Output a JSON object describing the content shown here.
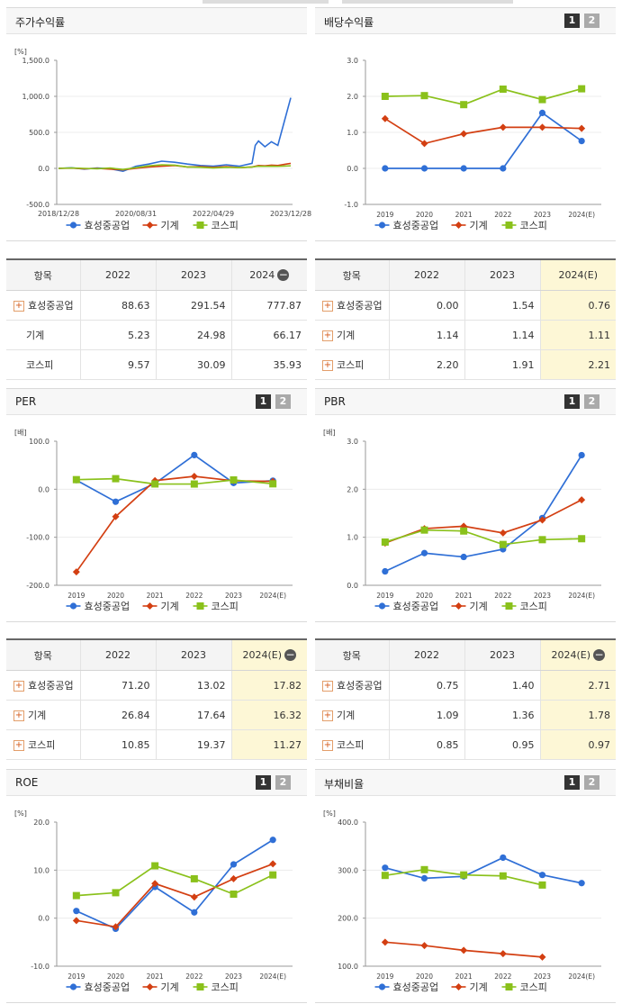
{
  "pager": {
    "p1": "1",
    "p2": "2"
  },
  "colors": {
    "blue": "#2f6fd6",
    "red": "#d33f12",
    "green": "#8ac11b"
  },
  "chart_data": [
    {
      "type": "line",
      "title": "주가수익률",
      "unit": "[%]",
      "ylim": [
        -500,
        1500
      ],
      "yticks": [
        "1,500.0",
        "1,000.0",
        "500.0",
        "0.0",
        "-500.0"
      ],
      "xticks": [
        "2018/12/28",
        "2020/08/31",
        "2022/04/29",
        "2023/12/28"
      ],
      "x": [
        0,
        4,
        8,
        12,
        16,
        20,
        24,
        28,
        32,
        36,
        40,
        44,
        48,
        52,
        56,
        60,
        61,
        62,
        64,
        66,
        68,
        70,
        72
      ],
      "series": [
        {
          "name": "효성중공업",
          "color": "blue",
          "values": [
            0,
            8,
            -10,
            5,
            -5,
            -40,
            30,
            60,
            100,
            85,
            60,
            40,
            30,
            50,
            30,
            70,
            320,
            380,
            300,
            370,
            320,
            650,
            980
          ]
        },
        {
          "name": "기계",
          "color": "red",
          "values": [
            0,
            3,
            -5,
            0,
            -10,
            -20,
            0,
            20,
            30,
            40,
            20,
            25,
            15,
            25,
            10,
            20,
            30,
            40,
            35,
            45,
            40,
            55,
            70
          ]
        },
        {
          "name": "코스피",
          "color": "green",
          "values": [
            0,
            5,
            0,
            -5,
            5,
            -15,
            10,
            35,
            50,
            45,
            20,
            15,
            5,
            15,
            10,
            20,
            25,
            30,
            28,
            30,
            28,
            32,
            36
          ]
        }
      ]
    },
    {
      "type": "line",
      "title": "배당수익률",
      "unit": "",
      "ylim": [
        -1,
        3
      ],
      "yticks": [
        "3.0",
        "2.0",
        "1.0",
        "0.0",
        "-1.0"
      ],
      "categories": [
        "2019",
        "2020",
        "2021",
        "2022",
        "2023",
        "2024(E)"
      ],
      "series": [
        {
          "name": "효성중공업",
          "color": "blue",
          "values": [
            0.0,
            0.0,
            0.0,
            0.0,
            1.54,
            0.76
          ]
        },
        {
          "name": "기계",
          "color": "red",
          "values": [
            1.38,
            0.69,
            0.96,
            1.14,
            1.14,
            1.11
          ]
        },
        {
          "name": "코스피",
          "color": "green",
          "values": [
            2.0,
            2.02,
            1.77,
            2.2,
            1.91,
            2.21
          ]
        }
      ]
    },
    {
      "type": "line",
      "title": "PER",
      "unit": "[배]",
      "ylim": [
        -200,
        100
      ],
      "yticks": [
        "100.0",
        "0.0",
        "-100.0",
        "-200.0"
      ],
      "categories": [
        "2019",
        "2020",
        "2021",
        "2022",
        "2023",
        "2024(E)"
      ],
      "series": [
        {
          "name": "효성중공업",
          "color": "blue",
          "values": [
            19,
            -26,
            12,
            71.2,
            13.02,
            17.82
          ]
        },
        {
          "name": "기계",
          "color": "red",
          "values": [
            -172,
            -57,
            18,
            26.84,
            17.64,
            16.32
          ]
        },
        {
          "name": "코스피",
          "color": "green",
          "values": [
            20,
            22,
            11,
            10.85,
            19.37,
            11.27
          ]
        }
      ]
    },
    {
      "type": "line",
      "title": "PBR",
      "unit": "[배]",
      "ylim": [
        0,
        3
      ],
      "yticks": [
        "3.0",
        "2.0",
        "1.0",
        "0.0"
      ],
      "categories": [
        "2019",
        "2020",
        "2021",
        "2022",
        "2023",
        "2024(E)"
      ],
      "series": [
        {
          "name": "효성중공업",
          "color": "blue",
          "values": [
            0.29,
            0.67,
            0.59,
            0.75,
            1.4,
            2.71
          ]
        },
        {
          "name": "기계",
          "color": "red",
          "values": [
            0.88,
            1.18,
            1.23,
            1.09,
            1.36,
            1.78
          ]
        },
        {
          "name": "코스피",
          "color": "green",
          "values": [
            0.9,
            1.15,
            1.13,
            0.85,
            0.95,
            0.97
          ]
        }
      ]
    },
    {
      "type": "line",
      "title": "ROE",
      "unit": "[%]",
      "ylim": [
        -10,
        20
      ],
      "yticks": [
        "20.0",
        "10.0",
        "0.0",
        "-10.0"
      ],
      "categories": [
        "2019",
        "2020",
        "2021",
        "2022",
        "2023",
        "2024(E)"
      ],
      "series": [
        {
          "name": "효성중공업",
          "color": "blue",
          "values": [
            1.5,
            -2.2,
            6.5,
            1.2,
            11.2,
            16.3
          ]
        },
        {
          "name": "기계",
          "color": "red",
          "values": [
            -0.5,
            -1.8,
            7.2,
            4.4,
            8.2,
            11.3
          ]
        },
        {
          "name": "코스피",
          "color": "green",
          "values": [
            4.7,
            5.3,
            10.9,
            8.2,
            5.0,
            9.0
          ]
        }
      ]
    },
    {
      "type": "line",
      "title": "부채비율",
      "unit": "[%]",
      "ylim": [
        100,
        400
      ],
      "yticks": [
        "400.0",
        "300.0",
        "200.0",
        "100.0"
      ],
      "categories": [
        "2019",
        "2020",
        "2021",
        "2022",
        "2023",
        "2024(E)"
      ],
      "series": [
        {
          "name": "효성중공업",
          "color": "blue",
          "values": [
            305,
            283,
            287,
            326,
            290,
            273
          ]
        },
        {
          "name": "기계",
          "color": "red",
          "values": [
            150,
            143,
            133,
            126,
            119,
            null
          ]
        },
        {
          "name": "코스피",
          "color": "green",
          "values": [
            289,
            301,
            290,
            288,
            269,
            null
          ]
        }
      ]
    }
  ],
  "tables": [
    {
      "head": [
        "항목",
        "2022",
        "2023",
        "2024"
      ],
      "collapse": true,
      "highlight_last": false,
      "rows": [
        {
          "plus": true,
          "label": "효성중공업",
          "values": [
            "88.63",
            "291.54",
            "777.87"
          ]
        },
        {
          "plus": false,
          "label": "기계",
          "values": [
            "5.23",
            "24.98",
            "66.17"
          ]
        },
        {
          "plus": false,
          "label": "코스피",
          "values": [
            "9.57",
            "30.09",
            "35.93"
          ]
        }
      ]
    },
    {
      "head": [
        "항목",
        "2022",
        "2023",
        "2024(E)"
      ],
      "collapse": false,
      "highlight_last": true,
      "rows": [
        {
          "plus": true,
          "label": "효성중공업",
          "values": [
            "0.00",
            "1.54",
            "0.76"
          ]
        },
        {
          "plus": true,
          "label": "기계",
          "values": [
            "1.14",
            "1.14",
            "1.11"
          ]
        },
        {
          "plus": true,
          "label": "코스피",
          "values": [
            "2.20",
            "1.91",
            "2.21"
          ]
        }
      ]
    },
    {
      "head": [
        "항목",
        "2022",
        "2023",
        "2024(E)"
      ],
      "collapse": true,
      "highlight_last": true,
      "rows": [
        {
          "plus": true,
          "label": "효성중공업",
          "values": [
            "71.20",
            "13.02",
            "17.82"
          ]
        },
        {
          "plus": true,
          "label": "기계",
          "values": [
            "26.84",
            "17.64",
            "16.32"
          ]
        },
        {
          "plus": true,
          "label": "코스피",
          "values": [
            "10.85",
            "19.37",
            "11.27"
          ]
        }
      ]
    },
    {
      "head": [
        "항목",
        "2022",
        "2023",
        "2024(E)"
      ],
      "collapse": true,
      "highlight_last": true,
      "rows": [
        {
          "plus": true,
          "label": "효성중공업",
          "values": [
            "0.75",
            "1.40",
            "2.71"
          ]
        },
        {
          "plus": true,
          "label": "기계",
          "values": [
            "1.09",
            "1.36",
            "1.78"
          ]
        },
        {
          "plus": true,
          "label": "코스피",
          "values": [
            "0.85",
            "0.95",
            "0.97"
          ]
        }
      ]
    }
  ]
}
